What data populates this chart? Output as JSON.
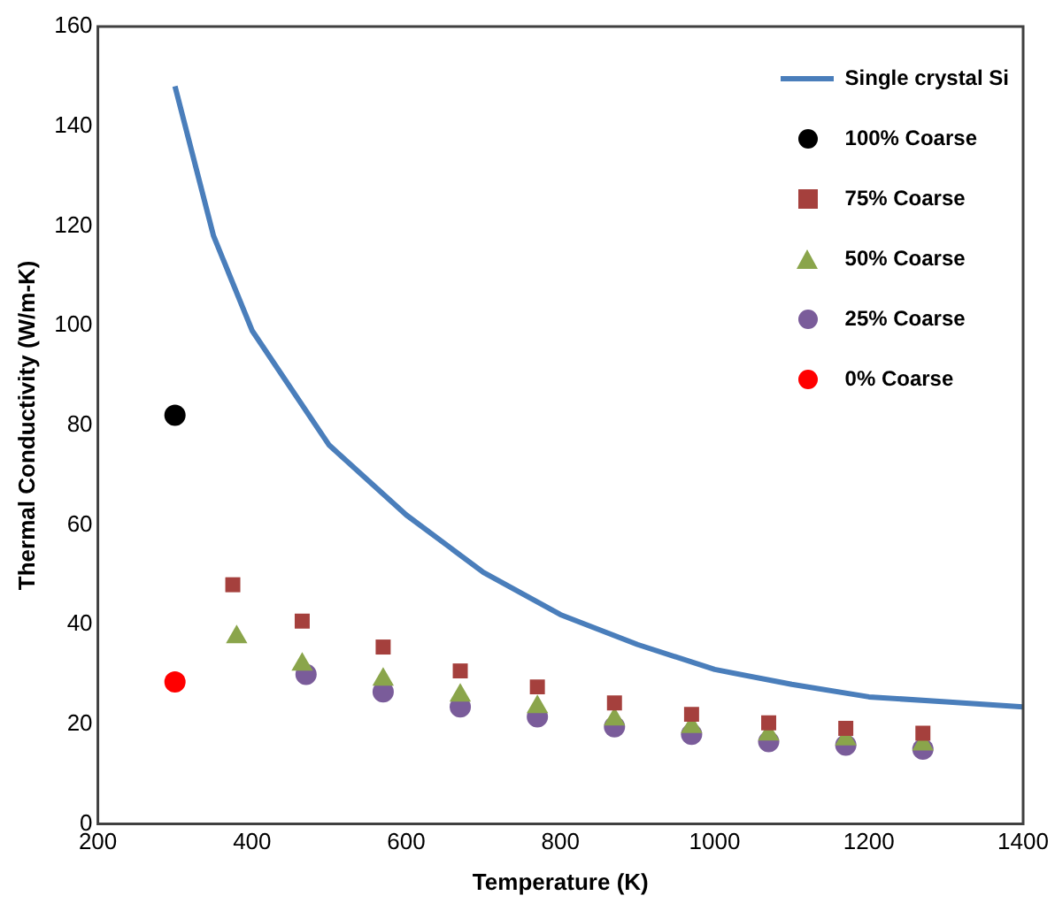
{
  "chart_data": {
    "type": "scatter",
    "xlabel": "Temperature (K)",
    "ylabel": "Thermal Conductivity (W/m-K)",
    "xlim": [
      200,
      1400
    ],
    "xticks": [
      200,
      400,
      600,
      800,
      1000,
      1200,
      1400
    ],
    "ylim": [
      0,
      160
    ],
    "yticks": [
      0,
      20,
      40,
      60,
      80,
      100,
      120,
      140,
      160
    ],
    "grid": false,
    "legend": "top right",
    "series": [
      {
        "name": "Single crystal Si",
        "type": "line",
        "marker": "none",
        "color": "#4a7ebb",
        "x": [
          300,
          350,
          400,
          500,
          600,
          700,
          800,
          900,
          1000,
          1100,
          1200,
          1300,
          1400
        ],
        "values": [
          148,
          118,
          99,
          76,
          62,
          50.5,
          42,
          36,
          31,
          28,
          25.5,
          24.5,
          23.5
        ]
      },
      {
        "name": "100% Coarse",
        "marker": "circle",
        "color": "#000000",
        "x": [
          300
        ],
        "values": [
          82
        ]
      },
      {
        "name": "75% Coarse",
        "marker": "square",
        "color": "#a5403d",
        "x": [
          375,
          465,
          570,
          670,
          770,
          870,
          970,
          1070,
          1170,
          1270
        ],
        "values": [
          48,
          40.7,
          35.5,
          30.7,
          27.5,
          24.3,
          22,
          20.3,
          19.2,
          18.2
        ]
      },
      {
        "name": "50% Coarse",
        "marker": "triangle",
        "color": "#8aa54b",
        "x": [
          380,
          465,
          570,
          670,
          770,
          870,
          970,
          1070,
          1170,
          1270
        ],
        "values": [
          37.5,
          32,
          29,
          25.8,
          23.5,
          21,
          19.5,
          18,
          17,
          16
        ]
      },
      {
        "name": "25% Coarse",
        "marker": "circle",
        "color": "#7a5c9a",
        "x": [
          470,
          570,
          670,
          770,
          870,
          970,
          1070,
          1170,
          1270
        ],
        "values": [
          30,
          26.5,
          23.5,
          21.5,
          19.5,
          18,
          16.5,
          15.8,
          15
        ]
      },
      {
        "name": "0% Coarse",
        "marker": "circle",
        "color": "#ff0000",
        "x": [
          300
        ],
        "values": [
          28.5
        ]
      }
    ]
  }
}
